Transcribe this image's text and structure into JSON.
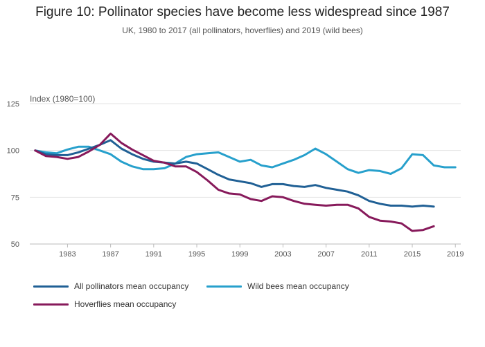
{
  "title": "Figure 10: Pollinator species have become less widespread since 1987",
  "subtitle": "UK, 1980 to 2017 (all pollinators, hoverflies) and 2019 (wild bees)",
  "chart_data": {
    "type": "line",
    "ylabel": "Index (1980=100)",
    "xlim": [
      1979.5,
      2019.5
    ],
    "ylim": [
      50,
      125
    ],
    "yticks": [
      50,
      75,
      100,
      125
    ],
    "xticks": [
      "1983",
      "1987",
      "1991",
      "1995",
      "1999",
      "2003",
      "2007",
      "2011",
      "2015",
      "2019"
    ],
    "grid": "horizontal",
    "legend_position": "bottom",
    "series": [
      {
        "name": "All pollinators mean occupancy",
        "color": "#206095",
        "x": [
          1980,
          1981,
          1982,
          1983,
          1984,
          1985,
          1986,
          1987,
          1988,
          1989,
          1990,
          1991,
          1992,
          1993,
          1994,
          1995,
          1996,
          1997,
          1998,
          1999,
          2000,
          2001,
          2002,
          2003,
          2004,
          2005,
          2006,
          2007,
          2008,
          2009,
          2010,
          2011,
          2012,
          2013,
          2014,
          2015,
          2016,
          2017
        ],
        "values": [
          100,
          98,
          97.5,
          97.5,
          99,
          101,
          103,
          105.5,
          101,
          98,
          95.5,
          94,
          93.5,
          93,
          94,
          93,
          90,
          87,
          84.5,
          83.5,
          82.5,
          80.5,
          82,
          82,
          81,
          80.5,
          81.5,
          80,
          79,
          78,
          76,
          73,
          71.5,
          70.5,
          70.5,
          70,
          70.5,
          70
        ]
      },
      {
        "name": "Wild bees mean occupancy",
        "color": "#27a0cc",
        "x": [
          1980,
          1981,
          1982,
          1983,
          1984,
          1985,
          1986,
          1987,
          1988,
          1989,
          1990,
          1991,
          1992,
          1993,
          1994,
          1995,
          1996,
          1997,
          1998,
          1999,
          2000,
          2001,
          2002,
          2003,
          2004,
          2005,
          2006,
          2007,
          2008,
          2009,
          2010,
          2011,
          2012,
          2013,
          2014,
          2015,
          2016,
          2017,
          2018,
          2019
        ],
        "values": [
          100,
          99,
          98.5,
          100.5,
          102,
          102,
          100,
          98,
          94,
          91.5,
          90,
          90,
          90.5,
          93,
          96.5,
          98,
          98.5,
          99,
          96.5,
          94,
          95,
          92,
          91,
          93,
          95,
          97.5,
          101,
          98,
          94,
          90,
          88,
          89.5,
          89,
          87.5,
          90.5,
          98,
          97.5,
          92,
          91,
          91
        ]
      },
      {
        "name": "Hoverflies mean occupancy",
        "color": "#871a5b",
        "x": [
          1980,
          1981,
          1982,
          1983,
          1984,
          1985,
          1986,
          1987,
          1988,
          1989,
          1990,
          1991,
          1992,
          1993,
          1994,
          1995,
          1996,
          1997,
          1998,
          1999,
          2000,
          2001,
          2002,
          2003,
          2004,
          2005,
          2006,
          2007,
          2008,
          2009,
          2010,
          2011,
          2012,
          2013,
          2014,
          2015,
          2016,
          2017
        ],
        "values": [
          100,
          97,
          96.5,
          95.5,
          96.5,
          99.5,
          103,
          109,
          104,
          100.5,
          97.5,
          94.5,
          93.5,
          91.5,
          91.5,
          88.5,
          84,
          79,
          77,
          76.5,
          74,
          73,
          75.5,
          75,
          73,
          71.5,
          71,
          70.5,
          71,
          71,
          69,
          64.5,
          62.5,
          62,
          61,
          57,
          57.5,
          59.5
        ]
      }
    ]
  }
}
